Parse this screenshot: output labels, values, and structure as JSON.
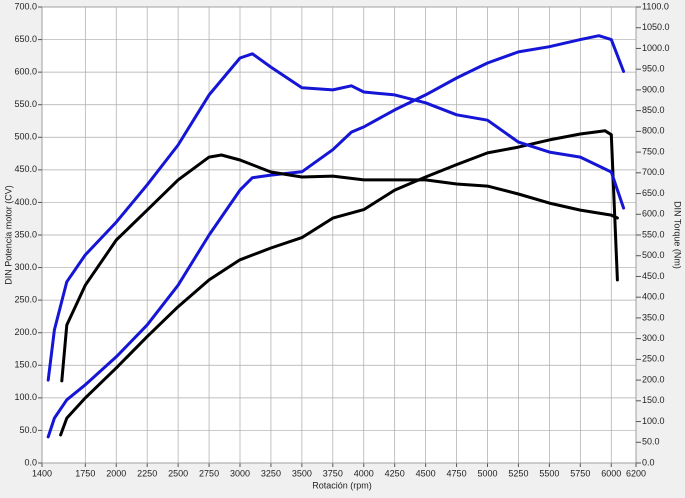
{
  "chart_data": {
    "type": "line",
    "xlabel": "Rotación (rpm)",
    "ylabel": "DIN Potencia motor (CV)",
    "y2label": "DIN Torque (Nm)",
    "grid": true,
    "xlim": [
      1400,
      6200
    ],
    "xticks": [
      1400,
      1750,
      2000,
      2250,
      2500,
      2750,
      3000,
      3250,
      3500,
      3750,
      4000,
      4250,
      4500,
      4750,
      5000,
      5250,
      5500,
      5750,
      6000,
      6200
    ],
    "ylim": [
      0,
      700
    ],
    "yticks": [
      {
        "value": 0,
        "label": "0.0"
      },
      {
        "value": 50,
        "label": "50.0"
      },
      {
        "value": 100,
        "label": "100.0"
      },
      {
        "value": 150,
        "label": "150.0"
      },
      {
        "value": 200,
        "label": "200.0"
      },
      {
        "value": 250,
        "label": "250.0"
      },
      {
        "value": 300,
        "label": "300.0"
      },
      {
        "value": 350,
        "label": "350.0"
      },
      {
        "value": 400,
        "label": "400.0"
      },
      {
        "value": 450,
        "label": "450.0"
      },
      {
        "value": 500,
        "label": "500.0"
      },
      {
        "value": 550,
        "label": "550.0"
      },
      {
        "value": 600,
        "label": "600.0"
      },
      {
        "value": 650,
        "label": "650.0"
      },
      {
        "value": 700,
        "label": "700.0"
      }
    ],
    "y2lim": [
      0,
      1100
    ],
    "y2ticks": [
      {
        "value": 0,
        "label": "0.0"
      },
      {
        "value": 50,
        "label": "50.0"
      },
      {
        "value": 100,
        "label": "100.0"
      },
      {
        "value": 150,
        "label": "150.0"
      },
      {
        "value": 200,
        "label": "200.0"
      },
      {
        "value": 250,
        "label": "250.0"
      },
      {
        "value": 300,
        "label": "300.0"
      },
      {
        "value": 350,
        "label": "350.0"
      },
      {
        "value": 400,
        "label": "400.0"
      },
      {
        "value": 450,
        "label": "450.0"
      },
      {
        "value": 500,
        "label": "500.0"
      },
      {
        "value": 550,
        "label": "550.0"
      },
      {
        "value": 600,
        "label": "600.0"
      },
      {
        "value": 650,
        "label": "650.0"
      },
      {
        "value": 700,
        "label": "700.0"
      },
      {
        "value": 750,
        "label": "750.0"
      },
      {
        "value": 800,
        "label": "800.0"
      },
      {
        "value": 850,
        "label": "850.0"
      },
      {
        "value": 900,
        "label": "900.0"
      },
      {
        "value": 950,
        "label": "950.0"
      },
      {
        "value": 1000,
        "label": "1000.0"
      },
      {
        "value": 1050,
        "label": "1050.0"
      },
      {
        "value": 1100,
        "label": "1100.0"
      }
    ],
    "series": [
      {
        "color": "#1515d6",
        "axis": "y",
        "x": [
          1450,
          1500,
          1600,
          1750,
          2000,
          2250,
          2500,
          2750,
          3000,
          3100,
          3250,
          3500,
          3750,
          3900,
          4000,
          4250,
          4500,
          4750,
          5000,
          5250,
          5500,
          5750,
          5900,
          6000,
          6100
        ],
        "values": [
          40,
          69,
          97,
          120,
          163,
          212,
          273,
          350,
          419,
          438,
          442,
          447,
          481,
          508,
          516,
          542,
          565,
          591,
          614,
          631,
          639,
          650,
          656,
          650,
          601
        ]
      },
      {
        "color": "#000000",
        "axis": "y",
        "x": [
          1550,
          1600,
          1750,
          2000,
          2250,
          2500,
          2750,
          3000,
          3250,
          3500,
          3750,
          4000,
          4250,
          4500,
          4750,
          5000,
          5250,
          5500,
          5750,
          5950,
          6000,
          6050
        ],
        "values": [
          43,
          69,
          100,
          146,
          194,
          240,
          281,
          312,
          330,
          346,
          376,
          389,
          419,
          439,
          458,
          476,
          485,
          496,
          505,
          510,
          504,
          281
        ]
      },
      {
        "color": "#1515d6",
        "axis": "y2",
        "x": [
          1450,
          1500,
          1600,
          1750,
          2000,
          2250,
          2500,
          2750,
          3000,
          3100,
          3250,
          3500,
          3750,
          3900,
          4000,
          4250,
          4500,
          4750,
          5000,
          5250,
          5500,
          5750,
          6000,
          6100
        ],
        "values": [
          200,
          321,
          437,
          502,
          581,
          671,
          767,
          888,
          977,
          987,
          955,
          905,
          900,
          910,
          895,
          888,
          869,
          840,
          827,
          774,
          750,
          738,
          702,
          615
        ]
      },
      {
        "color": "#000000",
        "axis": "y2",
        "x": [
          1560,
          1600,
          1750,
          2000,
          2250,
          2500,
          2750,
          2850,
          3000,
          3250,
          3500,
          3750,
          4000,
          4250,
          4500,
          4750,
          5000,
          5250,
          5500,
          5750,
          6000,
          6050
        ],
        "values": [
          198,
          333,
          429,
          538,
          610,
          683,
          738,
          743,
          731,
          702,
          690,
          692,
          683,
          683,
          683,
          673,
          668,
          649,
          627,
          610,
          598,
          591
        ]
      }
    ]
  }
}
